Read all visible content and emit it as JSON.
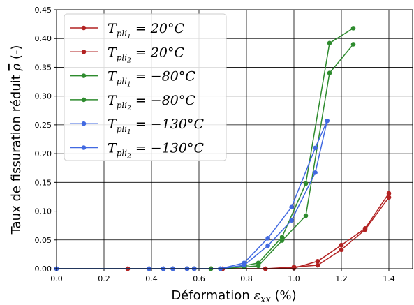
{
  "chart_data": {
    "type": "line",
    "title": "",
    "xlabel_main": "Déformation ",
    "xlabel_symbol": "ε",
    "xlabel_subscript": "xx",
    "xlabel_unit": " (%)",
    "ylabel_main": "Taux de fissuration réduit ",
    "ylabel_symbol": "ρ",
    "ylabel_unit": " (-)",
    "xlim": [
      0.0,
      1.5
    ],
    "ylim": [
      0.0,
      0.45
    ],
    "xticks": [
      0.0,
      0.2,
      0.4,
      0.6,
      0.8,
      1.0,
      1.2,
      1.4
    ],
    "xtick_labels": [
      "0.0",
      "0.2",
      "0.4",
      "0.6",
      "0.8",
      "1.0",
      "1.2",
      "1.4"
    ],
    "yticks": [
      0.0,
      0.05,
      0.1,
      0.15,
      0.2,
      0.25,
      0.3,
      0.35,
      0.4,
      0.45
    ],
    "ytick_labels": [
      "0.00",
      "0.05",
      "0.10",
      "0.15",
      "0.20",
      "0.25",
      "0.30",
      "0.35",
      "0.40",
      "0.45"
    ],
    "grid": true,
    "legend_position": "top-left",
    "series": [
      {
        "label_sub": "1",
        "label_value": " = 20°C",
        "color": "#b22222",
        "x": [
          0.0,
          0.3,
          0.39,
          0.45,
          0.49,
          0.55,
          0.58,
          0.65,
          0.7,
          0.88,
          1.0,
          1.1,
          1.2,
          1.3,
          1.4
        ],
        "y": [
          0.0,
          0.0,
          0.0,
          0.0,
          0.0,
          0.0,
          0.0,
          0.0,
          0.0,
          0.0,
          0.001,
          0.013,
          0.041,
          0.07,
          0.131
        ]
      },
      {
        "label_sub": "2",
        "label_value": " = 20°C",
        "color": "#b22222",
        "x": [
          0.0,
          0.3,
          0.39,
          0.45,
          0.49,
          0.55,
          0.58,
          0.65,
          0.7,
          0.88,
          1.0,
          1.1,
          1.2,
          1.3,
          1.4
        ],
        "y": [
          0.0,
          0.0,
          0.0,
          0.0,
          0.0,
          0.0,
          0.0,
          0.0,
          0.0,
          0.0,
          0.003,
          0.006,
          0.033,
          0.068,
          0.124
        ]
      },
      {
        "label_sub": "1",
        "label_value": " = −80°C",
        "color": "#2e8b2e",
        "x": [
          0.0,
          0.39,
          0.45,
          0.49,
          0.55,
          0.58,
          0.65,
          0.69,
          0.79,
          0.85,
          0.95,
          1.05,
          1.15,
          1.25
        ],
        "y": [
          0.0,
          0.0,
          0.0,
          0.0,
          0.0,
          0.0,
          0.0,
          0.0,
          0.005,
          0.01,
          0.055,
          0.148,
          0.392,
          0.418
        ]
      },
      {
        "label_sub": "2",
        "label_value": " = −80°C",
        "color": "#2e8b2e",
        "x": [
          0.0,
          0.39,
          0.45,
          0.49,
          0.55,
          0.58,
          0.65,
          0.69,
          0.79,
          0.85,
          0.95,
          1.05,
          1.15,
          1.25
        ],
        "y": [
          0.0,
          0.0,
          0.0,
          0.0,
          0.0,
          0.0,
          0.0,
          0.0,
          0.003,
          0.005,
          0.049,
          0.092,
          0.34,
          0.39
        ]
      },
      {
        "label_sub": "1",
        "label_value": " = −130°C",
        "color": "#4169e1",
        "x": [
          0.0,
          0.39,
          0.45,
          0.49,
          0.55,
          0.58,
          0.69,
          0.79,
          0.89,
          0.99,
          1.09,
          1.14
        ],
        "y": [
          0.0,
          0.0,
          0.0,
          0.0,
          0.0,
          0.0,
          0.0,
          0.01,
          0.053,
          0.107,
          0.21,
          0.257
        ]
      },
      {
        "label_sub": "2",
        "label_value": " = −130°C",
        "color": "#4169e1",
        "x": [
          0.0,
          0.39,
          0.45,
          0.49,
          0.55,
          0.58,
          0.69,
          0.79,
          0.89,
          0.99,
          1.09,
          1.14
        ],
        "y": [
          0.0,
          0.0,
          0.0,
          0.0,
          0.0,
          0.0,
          0.0,
          0.006,
          0.04,
          0.084,
          0.167,
          0.257
        ]
      }
    ],
    "legend_symbol_base": "T",
    "legend_symbol_sub": "pli"
  }
}
